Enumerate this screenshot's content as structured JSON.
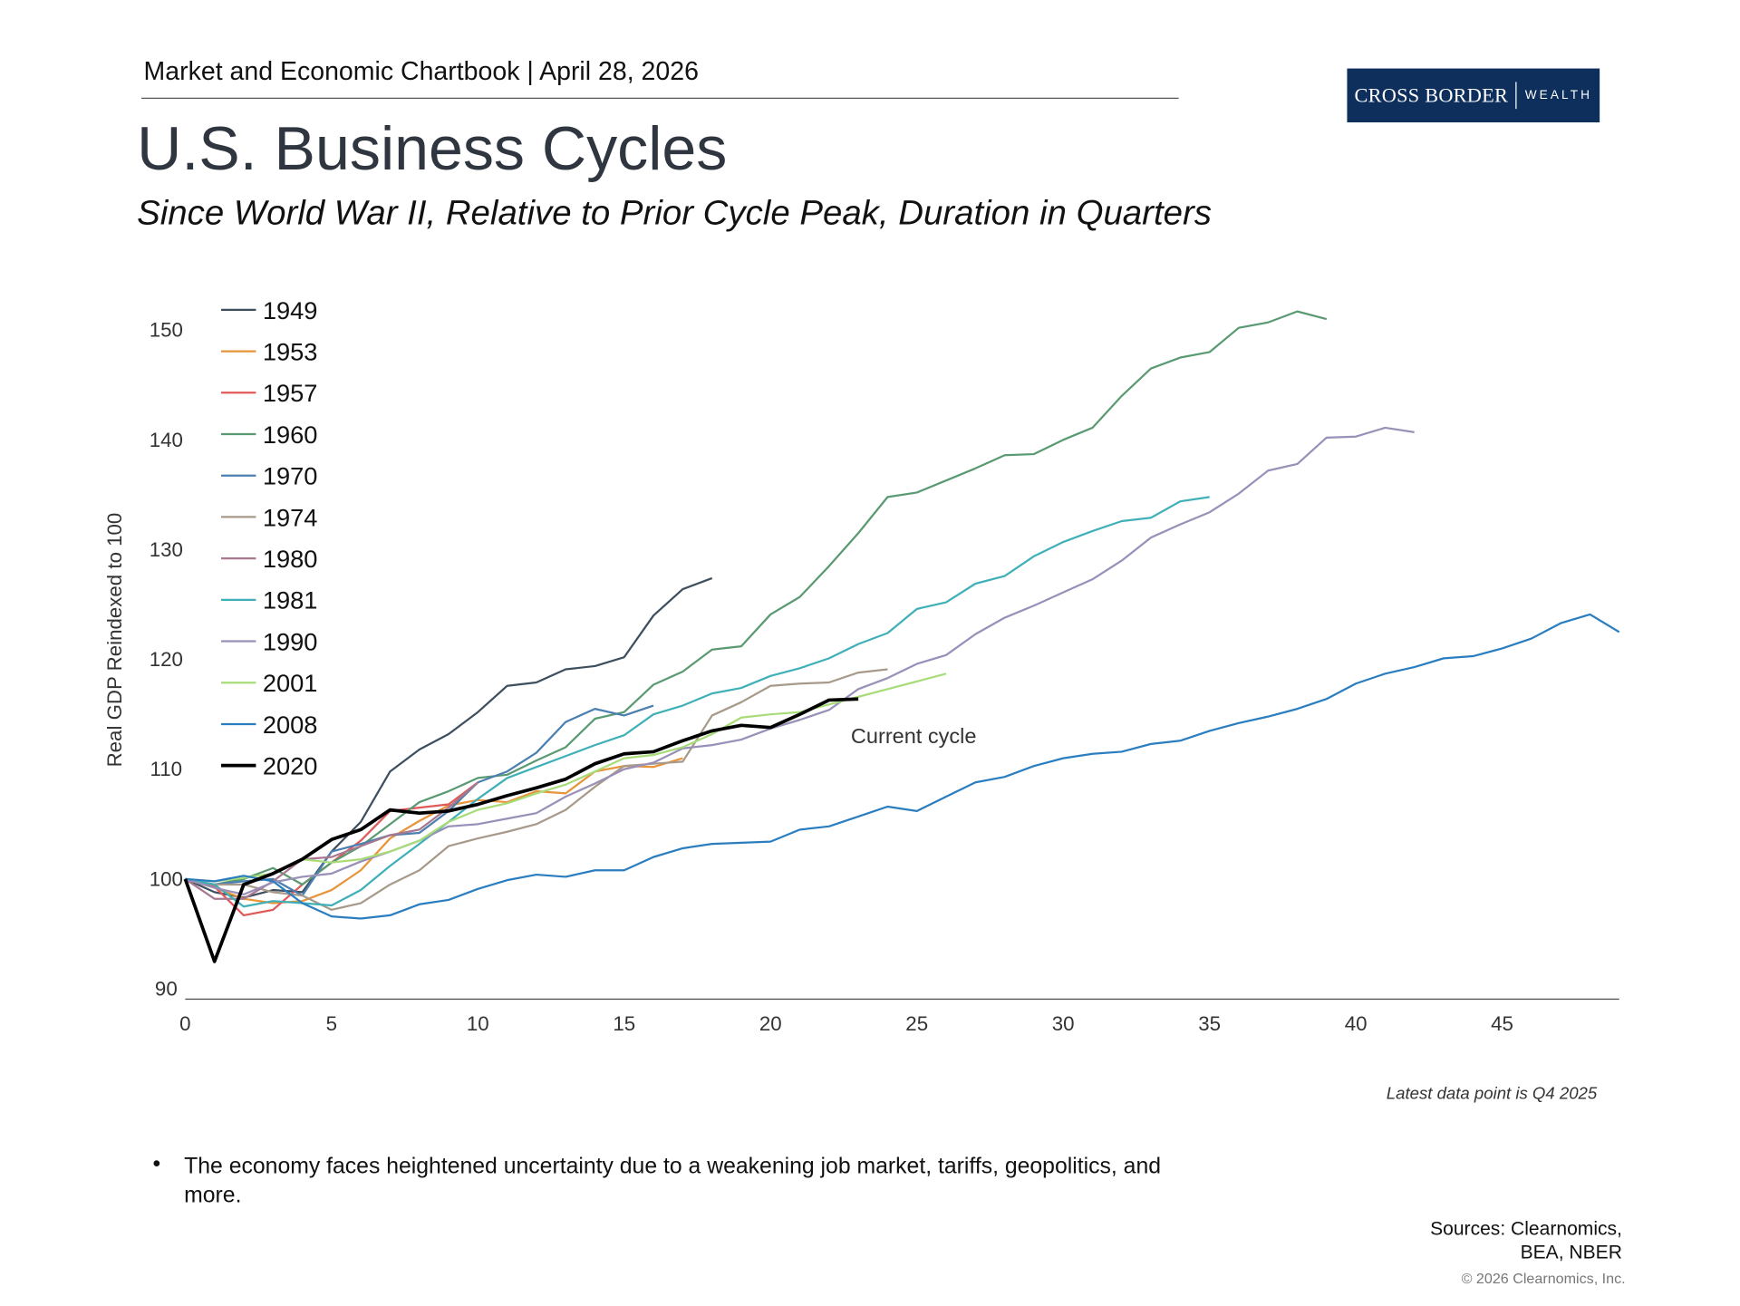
{
  "header": {
    "text": "Market and Economic Chartbook | April 28, 2026"
  },
  "logo": {
    "text_main": "CROSS BORDER",
    "text_sub": "WEALTH",
    "color": "#0e2e5c"
  },
  "title": "U.S. Business Cycles",
  "subtitle": "Since World War II, Relative to Prior Cycle Peak, Duration in Quarters",
  "chart_data": {
    "type": "line",
    "title": "",
    "xlabel": "",
    "ylabel": "Real GDP Reindexed to 100",
    "xlim": [
      0,
      49
    ],
    "ylim": [
      90,
      150
    ],
    "xticks": [
      0,
      5,
      10,
      15,
      20,
      25,
      30,
      35,
      40,
      45
    ],
    "yticks": [
      90,
      100,
      110,
      120,
      130,
      140,
      150
    ],
    "grid": false,
    "legend_position": "top-left",
    "annotation": "Current cycle",
    "series": [
      {
        "name": "1949",
        "color": "#3d4f5f",
        "values": [
          100,
          98.8,
          98.3,
          99,
          98.8,
          102.5,
          105.2,
          109.8,
          111.8,
          113.2,
          115.2,
          117.6,
          117.9,
          119.1,
          119.4,
          120.2,
          124,
          126.4,
          127.4
        ]
      },
      {
        "name": "1953",
        "color": "#e8943a",
        "values": [
          100,
          99.2,
          98.2,
          97.8,
          98,
          99,
          100.8,
          103.7,
          105.3,
          106.7,
          107.2,
          107,
          108,
          107.8,
          109.8,
          110.3,
          110.2,
          111
        ]
      },
      {
        "name": "1957",
        "color": "#e05a5a",
        "values": [
          100,
          99.3,
          96.7,
          97.2,
          99.5,
          101.5,
          103.5,
          106.2,
          106.5,
          106.8,
          108.8
        ]
      },
      {
        "name": "1960",
        "color": "#5a9a72",
        "values": [
          100,
          99.5,
          100,
          101,
          99.5,
          101.5,
          103,
          105,
          107,
          108,
          109.2,
          109.5,
          110.8,
          112,
          114.6,
          115.2,
          117.7,
          118.9,
          120.9,
          121.2,
          124.1,
          125.7,
          128.5,
          131.5,
          134.8,
          135.2,
          136.3,
          137.4,
          138.6,
          138.7,
          140,
          141.1,
          144,
          146.5,
          147.5,
          148,
          150.2,
          150.7,
          151.7,
          151
        ]
      },
      {
        "name": "1970",
        "color": "#4a7fb0",
        "values": [
          100,
          99.5,
          99.8,
          100,
          98.5,
          102.5,
          103.2,
          104,
          104.2,
          106.2,
          108.8,
          109.8,
          111.5,
          114.3,
          115.5,
          114.9,
          115.8
        ]
      },
      {
        "name": "1974",
        "color": "#a89a8a",
        "values": [
          100,
          99.5,
          99.5,
          98.8,
          98.5,
          97.2,
          97.8,
          99.5,
          100.8,
          103,
          103.7,
          104.3,
          105,
          106.3,
          108.4,
          110.3,
          110.5,
          110.7,
          114.9,
          116.1,
          117.6,
          117.8,
          117.9,
          118.8,
          119.1
        ]
      },
      {
        "name": "1980",
        "color": "#a87890",
        "values": [
          100,
          98.2,
          98.2,
          99.8,
          101.8,
          102,
          103,
          104,
          104.5,
          106.5,
          108.8
        ]
      },
      {
        "name": "1981",
        "color": "#40b0b8",
        "values": [
          100,
          99.5,
          97.5,
          98,
          97.8,
          97.6,
          99,
          101.2,
          103.2,
          105.2,
          107.3,
          109.2,
          110.2,
          111.2,
          112.2,
          113.1,
          115,
          115.8,
          116.9,
          117.4,
          118.5,
          119.2,
          120.1,
          121.4,
          122.4,
          124.6,
          125.2,
          126.9,
          127.6,
          129.4,
          130.7,
          131.7,
          132.6,
          132.9,
          134.4,
          134.8
        ]
      },
      {
        "name": "1990",
        "color": "#9890b8",
        "values": [
          100,
          99.2,
          98.6,
          99.7,
          100.2,
          100.5,
          101.6,
          102.5,
          103.5,
          104.8,
          105,
          105.5,
          106,
          107.5,
          108.7,
          110,
          110.6,
          111.9,
          112.2,
          112.7,
          113.7,
          114.5,
          115.4,
          117.3,
          118.3,
          119.6,
          120.4,
          122.3,
          123.8,
          124.9,
          126.1,
          127.3,
          129,
          131.1,
          132.3,
          133.4,
          135.1,
          137.2,
          137.8,
          140.2,
          140.3,
          141.1,
          140.7
        ]
      },
      {
        "name": "2001",
        "color": "#a8dc78",
        "values": [
          100,
          99.8,
          100.1,
          100.5,
          101.8,
          101.5,
          101.8,
          102.5,
          103.5,
          105.2,
          106.3,
          106.9,
          107.8,
          108.6,
          109.8,
          111,
          111.3,
          112,
          113.2,
          114.7,
          115,
          115.2,
          115.9,
          116.6,
          117.3,
          118,
          118.7
        ]
      },
      {
        "name": "2008",
        "color": "#2a7ec0",
        "values": [
          100,
          99.8,
          100.3,
          99.8,
          97.8,
          96.6,
          96.4,
          96.7,
          97.7,
          98.1,
          99.1,
          99.9,
          100.4,
          100.2,
          100.8,
          100.8,
          102,
          102.8,
          103.2,
          103.3,
          103.4,
          104.5,
          104.8,
          105.7,
          106.6,
          106.2,
          107.5,
          108.8,
          109.3,
          110.3,
          111,
          111.4,
          111.6,
          112.3,
          112.6,
          113.5,
          114.2,
          114.8,
          115.5,
          116.4,
          117.8,
          118.7,
          119.3,
          120.1,
          120.3,
          121,
          121.9,
          123.3,
          124.1,
          122.5
        ]
      },
      {
        "name": "2020",
        "color": "#000000",
        "values": [
          100,
          92.5,
          99.5,
          100.5,
          101.8,
          103.6,
          104.5,
          106.3,
          106,
          106.2,
          106.8,
          107.6,
          108.3,
          109.1,
          110.5,
          111.4,
          111.6,
          112.6,
          113.5,
          114,
          113.8,
          115,
          116.3,
          116.4
        ]
      }
    ]
  },
  "note": "Latest data point is Q4 2025",
  "bullets": [
    "The economy faces heightened uncertainty due to a weakening job market, tariffs, geopolitics, and more."
  ],
  "sources": {
    "line1": "Sources: Clearnomics,",
    "line2": "BEA, NBER"
  },
  "copyright": "© 2026 Clearnomics, Inc."
}
